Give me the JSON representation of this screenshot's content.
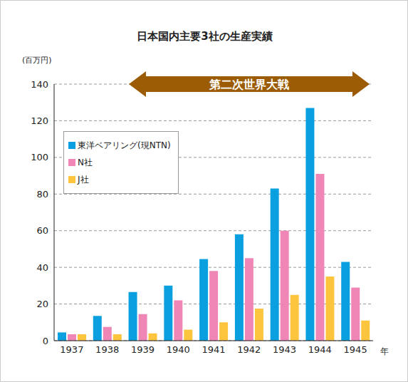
{
  "chart_data": {
    "type": "bar",
    "title": "日本国内主要3社の生産実績",
    "y_label": "(百万円)",
    "x_label": "年",
    "categories": [
      "1937",
      "1938",
      "1939",
      "1940",
      "1941",
      "1942",
      "1943",
      "1944",
      "1945"
    ],
    "series": [
      {
        "name": "東洋ベアリング(現NTN)",
        "color": "#0aa0e0",
        "values": [
          4.5,
          13.5,
          26.5,
          30,
          44.5,
          58,
          83,
          127,
          43
        ]
      },
      {
        "name": "N社",
        "color": "#ef86b6",
        "values": [
          3.5,
          7.5,
          14.5,
          22,
          38,
          45,
          60,
          91,
          29
        ]
      },
      {
        "name": "J社",
        "color": "#fdc43e",
        "values": [
          3.5,
          3.5,
          4,
          6,
          10,
          17.5,
          25,
          35,
          11
        ]
      }
    ],
    "ylim": [
      0,
      140
    ],
    "yticks": [
      0,
      20,
      40,
      60,
      80,
      100,
      120,
      140
    ],
    "grid": true,
    "legend": "upper left",
    "annotations": [
      {
        "text": "第二次世界大戦",
        "from": "1939",
        "to": "1945"
      }
    ]
  }
}
